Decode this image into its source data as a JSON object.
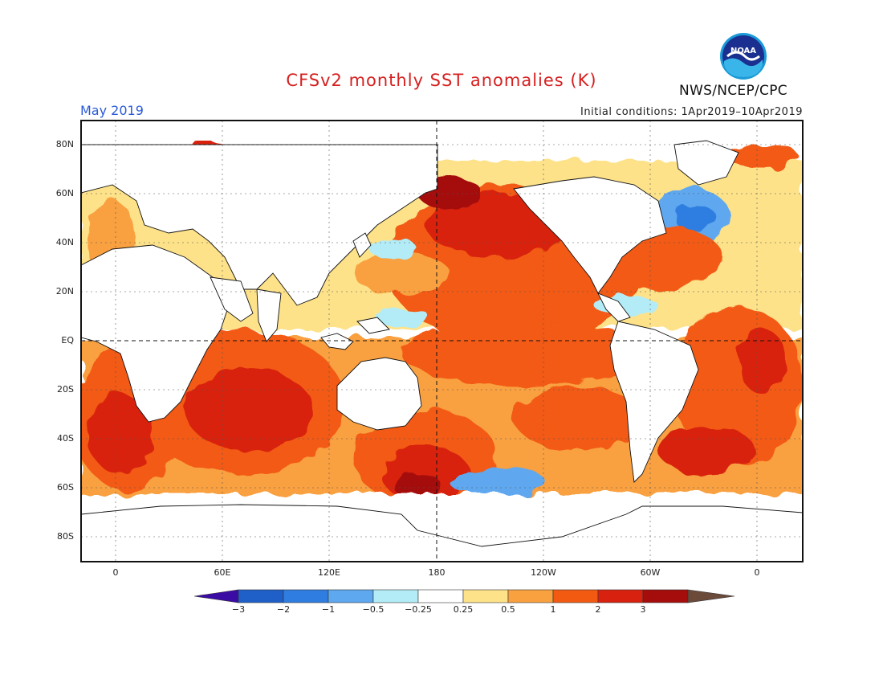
{
  "title": "CFSv2 monthly SST anomalies (K)",
  "period": "May 2019",
  "initial_conditions": "Initial conditions: 1Apr2019–10Apr2019",
  "agency": "NWS/NCEP/CPC",
  "logo_text": "NOAA",
  "lat_labels": [
    "80N",
    "60N",
    "40N",
    "20N",
    "EQ",
    "20S",
    "40S",
    "60S",
    "80S"
  ],
  "lon_labels": [
    "0",
    "60E",
    "120E",
    "180",
    "120W",
    "60W",
    "0"
  ],
  "colorbar": {
    "labels": [
      "−3",
      "−2",
      "−1",
      "−0.5",
      "−0.25",
      "0.25",
      "0.5",
      "1",
      "2",
      "3"
    ],
    "colors": [
      "#3a0ca3",
      "#1f5fc8",
      "#2f7de0",
      "#5ea8ef",
      "#b3ecf6",
      "#ffffff",
      "#fde28a",
      "#f9a03f",
      "#f25a12",
      "#d8210e",
      "#a50c0c",
      "#6b4a3a"
    ]
  },
  "colors": {
    "title": "#d62020",
    "period": "#2a5bd7",
    "land": "#ffffff",
    "coast": "#111111"
  }
}
